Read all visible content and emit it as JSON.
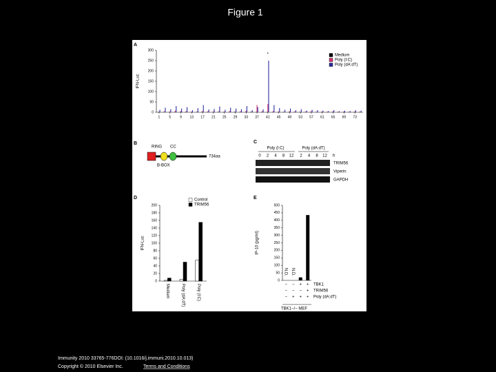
{
  "slide": {
    "title": "Figure 1",
    "citation": "Immunity 2010 33765-776DOI: (10.1016/j.immuni.2010.10.013)",
    "copyright": "Copyright © 2010 Elsevier Inc.",
    "link": "Terms and Conditions"
  },
  "chart_data": [
    {
      "type": "bar",
      "panel": "A",
      "ylabel": "IFN-Luc",
      "x": [
        1,
        3,
        5,
        7,
        9,
        11,
        13,
        15,
        17,
        19,
        21,
        23,
        25,
        27,
        29,
        31,
        33,
        35,
        37,
        39,
        41,
        43,
        45,
        47,
        49,
        51,
        53,
        55,
        57,
        59,
        61,
        63,
        65,
        67,
        69,
        71,
        73,
        75
      ],
      "series": [
        {
          "name": "Medium",
          "color": "#000000",
          "values": [
            2,
            2,
            2,
            2,
            2,
            2,
            2,
            2,
            2,
            2,
            2,
            2,
            2,
            2,
            2,
            2,
            2,
            2,
            2,
            2,
            2,
            2,
            2,
            2,
            2,
            2,
            2,
            2,
            2,
            2,
            2,
            2,
            2,
            2,
            2,
            2,
            2,
            2
          ]
        },
        {
          "name": "Poly (I:C)",
          "color": "#d6306f",
          "values": [
            3,
            5,
            4,
            8,
            6,
            5,
            3,
            4,
            6,
            5,
            4,
            5,
            3,
            6,
            4,
            5,
            8,
            4,
            35,
            5,
            40,
            6,
            4,
            3,
            5,
            4,
            3,
            4,
            5,
            3,
            4,
            3,
            5,
            3,
            4,
            3,
            4,
            3
          ]
        },
        {
          "name": "Poly (dA:dT)",
          "color": "#2b2b9e",
          "values": [
            12,
            22,
            15,
            30,
            18,
            25,
            10,
            20,
            35,
            14,
            16,
            28,
            12,
            22,
            18,
            15,
            30,
            10,
            25,
            14,
            250,
            35,
            20,
            12,
            18,
            10,
            15,
            8,
            12,
            10,
            8,
            6,
            10,
            5,
            8,
            6,
            10,
            8
          ]
        }
      ],
      "xlim": [
        0,
        76
      ],
      "xticks": [
        1,
        5,
        9,
        13,
        17,
        21,
        25,
        29,
        33,
        37,
        41,
        45,
        49,
        53,
        57,
        61,
        65,
        69,
        73
      ],
      "ylim": [
        0,
        300
      ],
      "yticks": [
        0,
        50,
        100,
        150,
        200,
        250,
        300
      ],
      "annotation": "*"
    },
    {
      "type": "bar",
      "panel": "D",
      "ylabel": "IFN-Luc",
      "categories": [
        "Medium",
        "Poly (dA:dT)",
        "Poly (I:C)"
      ],
      "series": [
        {
          "name": "Control",
          "color": "#ffffff",
          "values": [
            2,
            5,
            55
          ]
        },
        {
          "name": "TRIM56",
          "color": "#000000",
          "values": [
            8,
            50,
            155
          ]
        }
      ],
      "ylim": [
        0,
        200
      ],
      "yticks": [
        0,
        20,
        40,
        60,
        80,
        100,
        120,
        140,
        160,
        180,
        200
      ]
    },
    {
      "type": "bar",
      "panel": "E",
      "ylabel": "IP-10 (pg/ml)",
      "categories": [
        null,
        null,
        null,
        null
      ],
      "series": [
        {
          "name": "IP-10",
          "color": "#000000",
          "values": [
            0,
            0,
            20,
            435
          ]
        }
      ],
      "annotations": [
        "N.D.",
        "N.D."
      ],
      "ylim": [
        0,
        500
      ],
      "yticks": [
        0,
        50,
        100,
        150,
        200,
        250,
        300,
        350,
        400,
        450,
        500
      ],
      "conditions": [
        {
          "name": "TBK1",
          "signs": [
            "−",
            "−",
            "+",
            "+"
          ]
        },
        {
          "name": "TRIM56",
          "signs": [
            "−",
            "−",
            "−",
            "+"
          ]
        },
        {
          "name": "Poly (dA:dT)",
          "signs": [
            "−",
            "+",
            "+",
            "+"
          ]
        }
      ],
      "cell_line": "TBK1−/− MEF"
    }
  ],
  "panel_b": {
    "label": "B",
    "domains": [
      "RING",
      "CC",
      "B-BOX"
    ],
    "length": "734aa"
  },
  "panel_c": {
    "label": "C",
    "treatments": [
      "Poly (I:C)",
      "Poly (dA:dT)"
    ],
    "times_ic": [
      0,
      2,
      4,
      8,
      12
    ],
    "times_da": [
      2,
      4,
      8,
      12
    ],
    "unit": "h",
    "genes": [
      "TRIM56",
      "Viperin",
      "GAPDH"
    ]
  },
  "panel_labels": [
    "A",
    "D",
    "E"
  ]
}
